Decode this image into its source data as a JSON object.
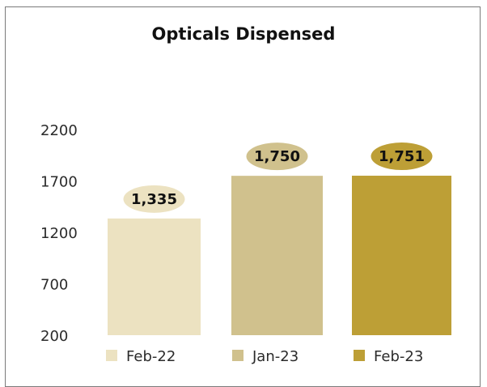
{
  "chart_data": {
    "type": "bar",
    "title": "Opticals Dispensed",
    "categories": [
      "Feb-22",
      "Jan-23",
      "Feb-23"
    ],
    "values": [
      1335,
      1750,
      1751
    ],
    "data_labels": [
      "1,335",
      "1,750",
      "1,751"
    ],
    "colors": [
      "#ece2c1",
      "#d0c18d",
      "#bd9f36"
    ],
    "label_bubble_colors": [
      "#ece2c1",
      "#d0c18d",
      "#bd9f36"
    ],
    "y_ticks": [
      200,
      700,
      1200,
      1700,
      2200
    ],
    "ylim": [
      200,
      2200
    ],
    "xlabel": "",
    "ylabel": "",
    "grid": false,
    "legend": {
      "placement": "bottom",
      "entries": [
        "Feb-22",
        "Jan-23",
        "Feb-23"
      ]
    }
  }
}
